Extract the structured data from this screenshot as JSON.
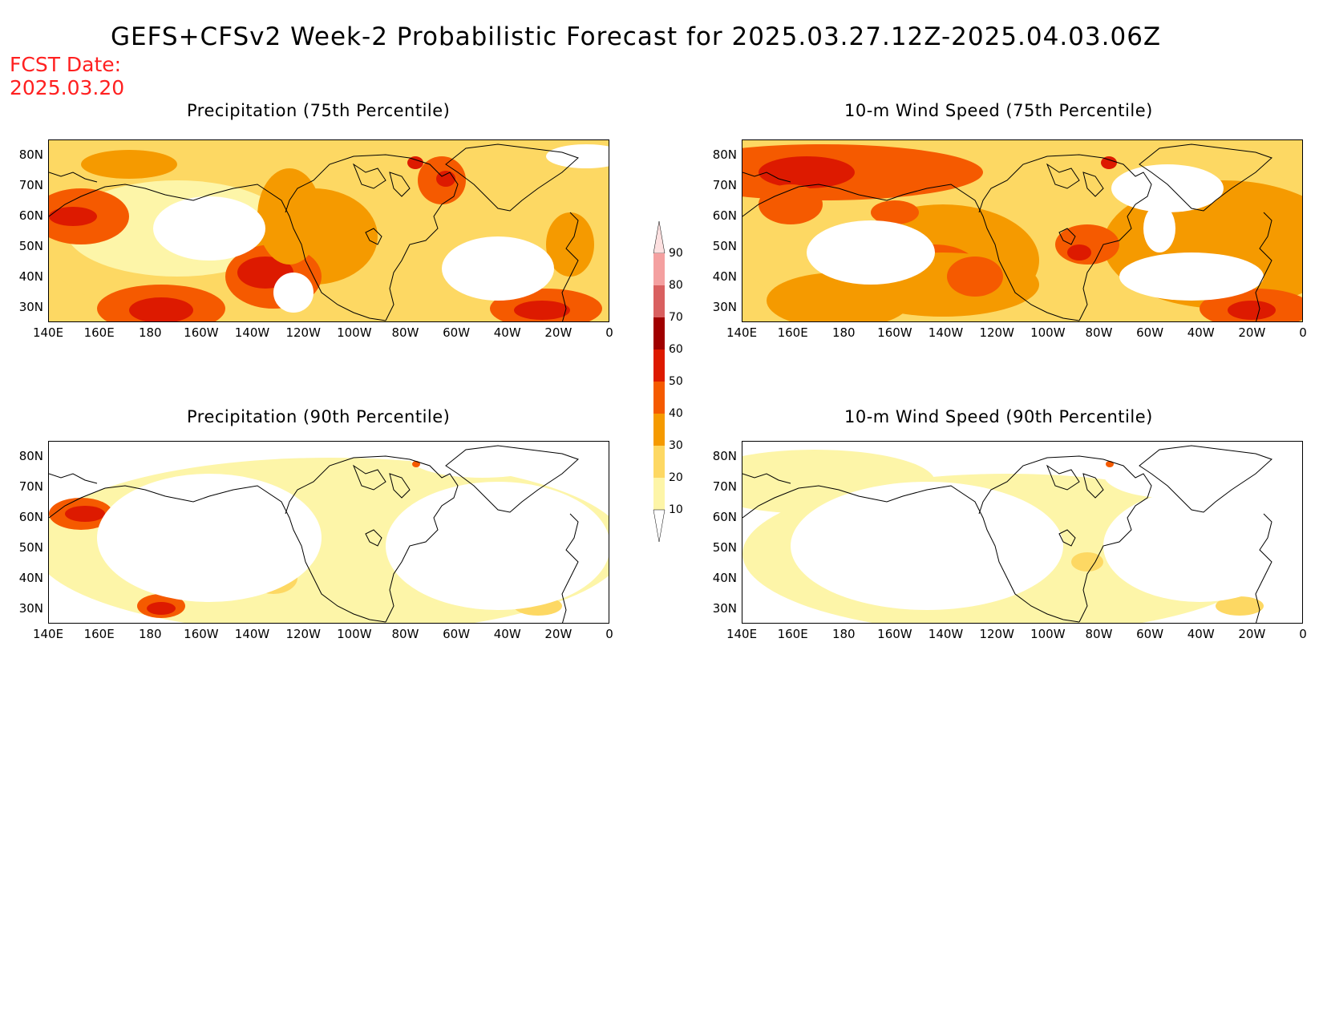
{
  "header": {
    "title": "GEFS+CFSv2 Week-2 Probabilistic Forecast for 2025.03.27.12Z-2025.04.03.06Z",
    "fcst_label": "FCST Date:",
    "fcst_date": "2025.03.20"
  },
  "panels": [
    {
      "title": "Precipitation (75th Percentile)"
    },
    {
      "title": "10-m Wind Speed (75th Percentile)"
    },
    {
      "title": "Precipitation (90th Percentile)"
    },
    {
      "title": "10-m Wind Speed (90th Percentile)"
    }
  ],
  "axes": {
    "lat_labels": [
      "80N",
      "70N",
      "60N",
      "50N",
      "40N",
      "30N"
    ],
    "lon_labels": [
      "140E",
      "160E",
      "180",
      "160W",
      "140W",
      "120W",
      "100W",
      "80W",
      "60W",
      "40W",
      "20W",
      "0"
    ]
  },
  "colorbar": {
    "labels": [
      "90",
      "80",
      "70",
      "60",
      "50",
      "40",
      "30",
      "20",
      "10"
    ],
    "colors": [
      "#fde0e0",
      "#f4a0a0",
      "#d96060",
      "#a00000",
      "#dd1a00",
      "#f55a00",
      "#f59a00",
      "#fdd863",
      "#fdf5a8"
    ]
  }
}
